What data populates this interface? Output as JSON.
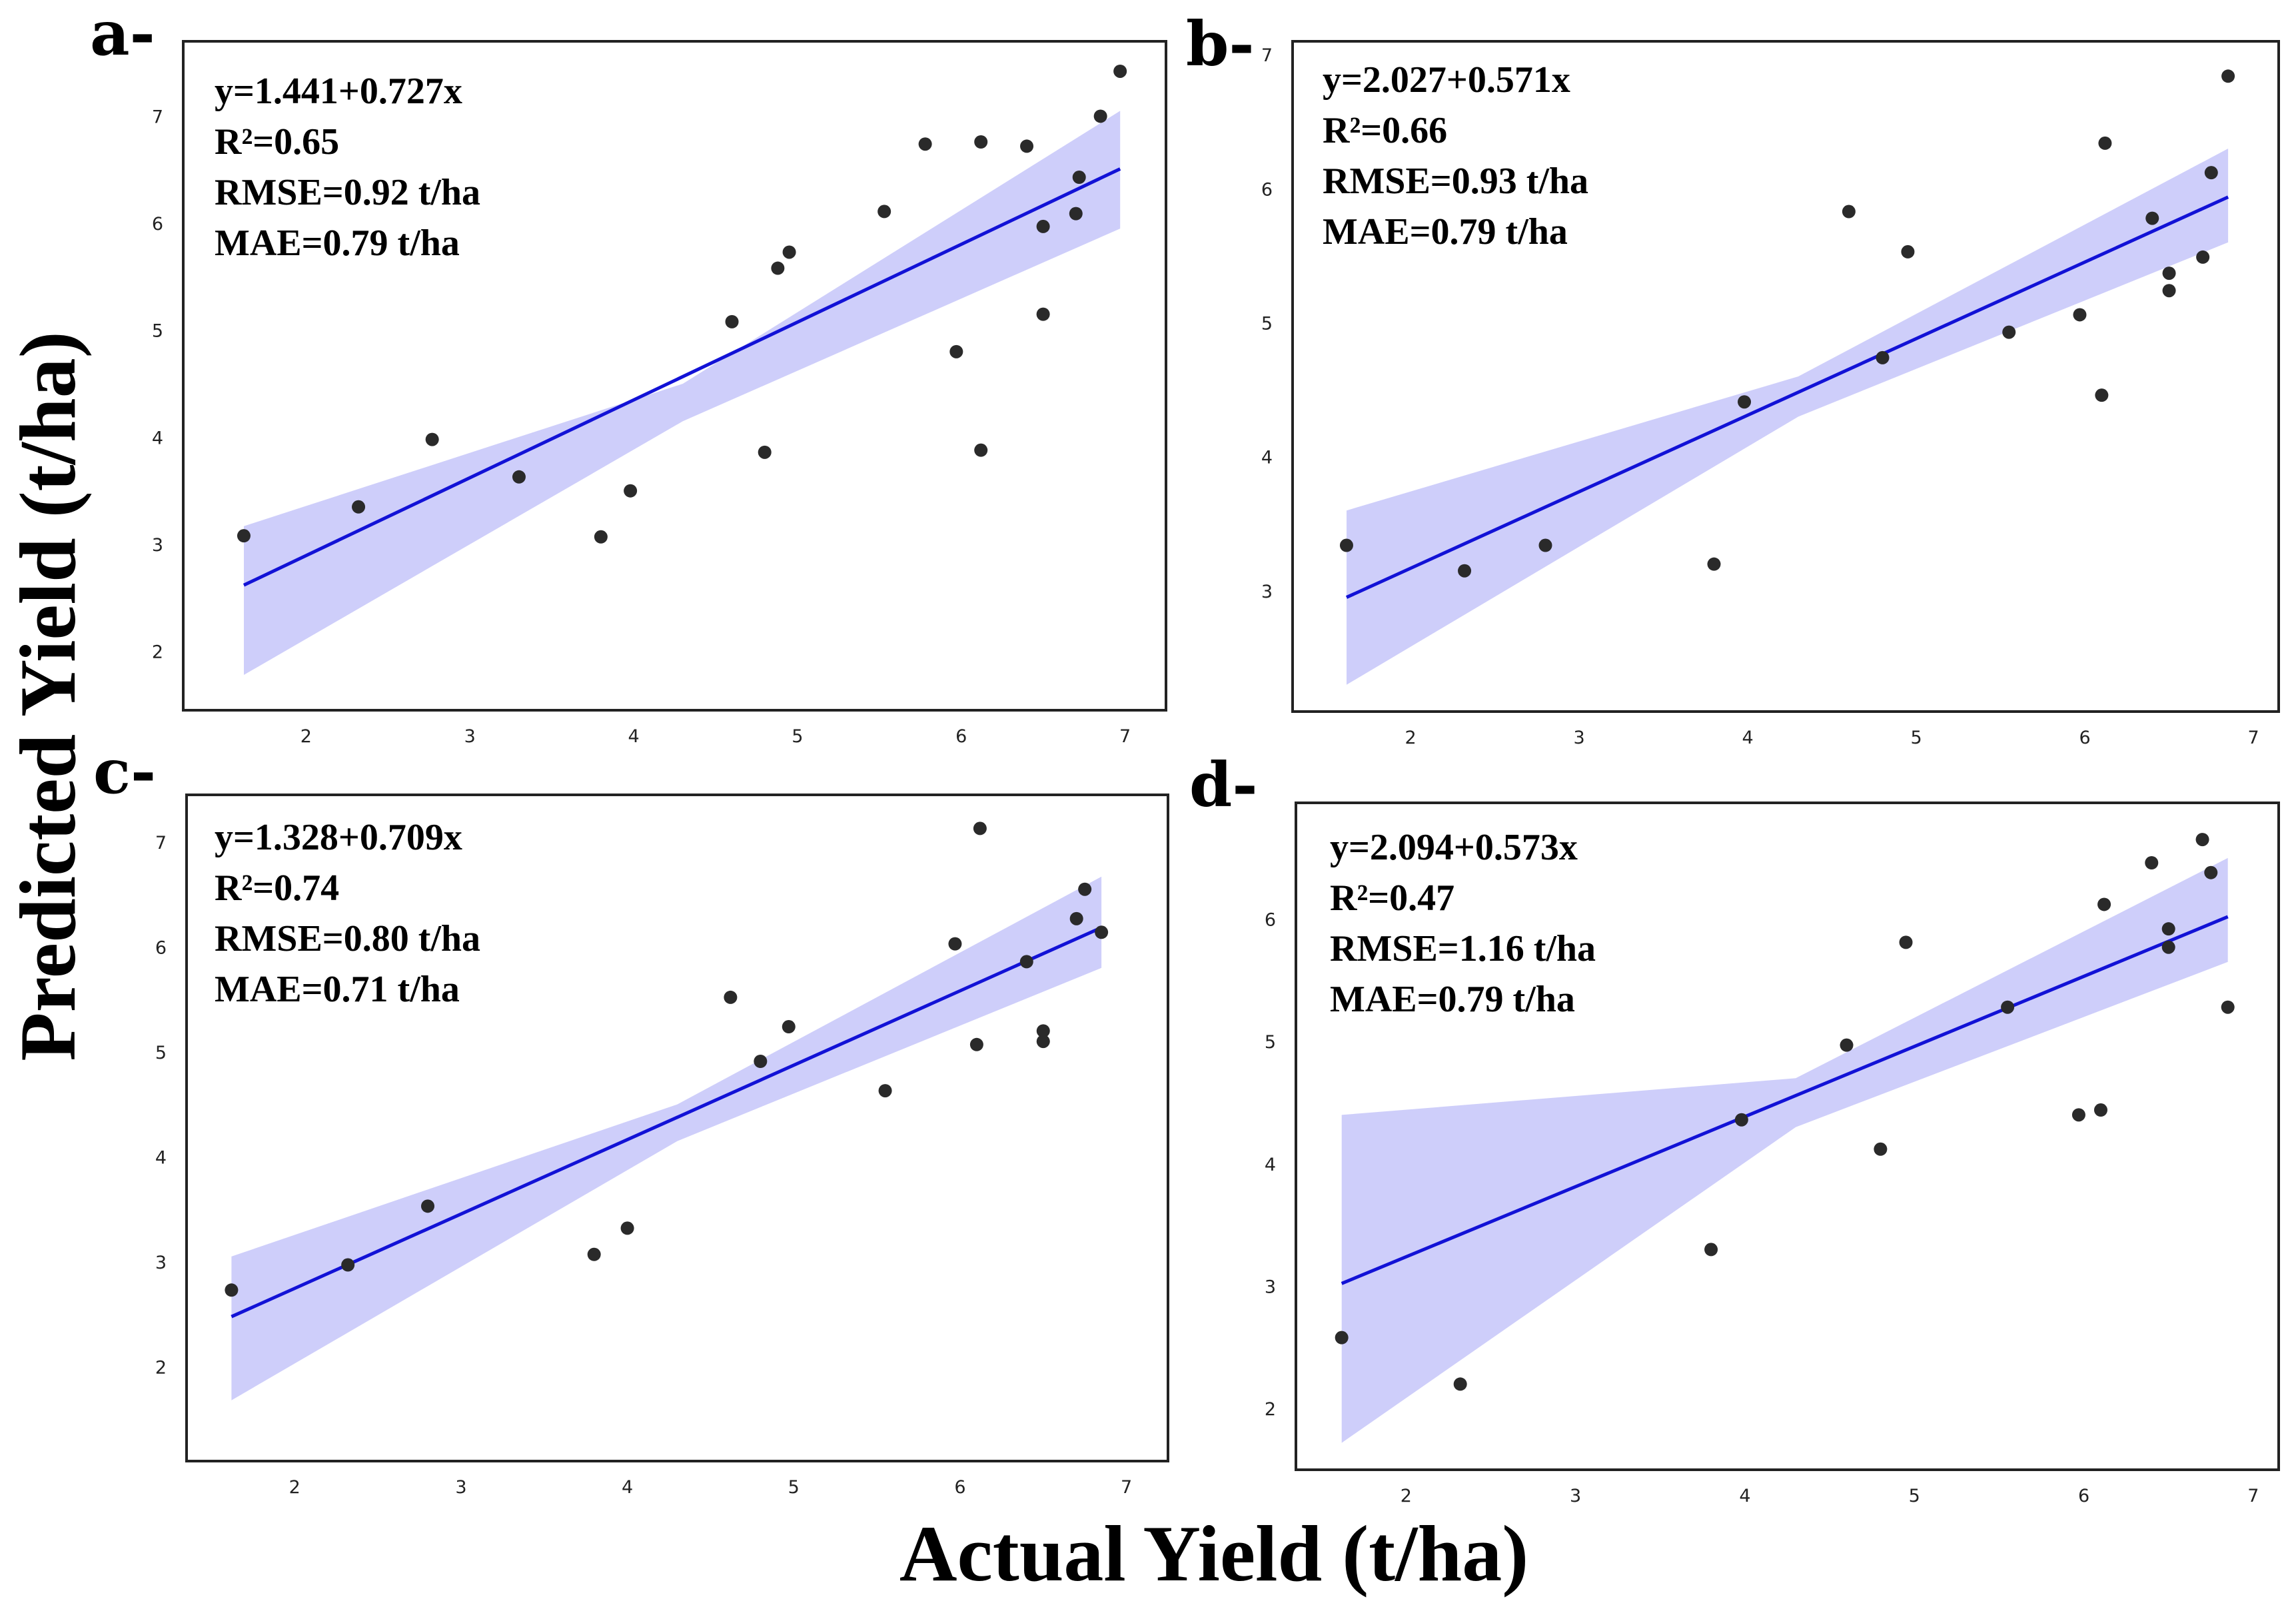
{
  "figure": {
    "x_title": "Actual Yield (t/ha)",
    "y_title": "Predicted Yield (t/ha)"
  },
  "chart_data": [
    {
      "type": "scatter",
      "label": "a-",
      "xlim": [
        1.25,
        7.25
      ],
      "ylim": [
        1.45,
        7.7
      ],
      "xticks": [
        2,
        3,
        4,
        5,
        6,
        7
      ],
      "yticks": [
        2,
        3,
        4,
        5,
        6,
        7
      ],
      "equation": "y=1.441+0.727x",
      "r2": "R²=0.65",
      "rmse": "RMSE=0.92 t/ha",
      "mae": "MAE=0.79 t/ha",
      "fit": {
        "intercept": 1.441,
        "slope": 0.727,
        "x_range": [
          1.62,
          6.97
        ]
      },
      "ci_band": {
        "x": [
          1.62,
          4.3,
          6.97
        ],
        "lower": [
          1.78,
          4.15,
          5.95
        ],
        "upper": [
          3.17,
          4.5,
          7.05
        ]
      },
      "x": [
        1.62,
        2.32,
        2.77,
        3.3,
        3.8,
        3.98,
        4.6,
        4.8,
        4.88,
        4.95,
        5.53,
        5.78,
        5.97,
        6.12,
        6.12,
        6.4,
        6.5,
        6.5,
        6.7,
        6.72,
        6.85,
        6.97
      ],
      "y": [
        3.08,
        3.35,
        3.98,
        3.63,
        3.07,
        3.5,
        5.08,
        3.86,
        5.58,
        5.73,
        6.11,
        6.74,
        4.8,
        3.88,
        6.76,
        6.72,
        5.97,
        5.15,
        6.09,
        6.43,
        7.0,
        7.42
      ]
    },
    {
      "type": "scatter",
      "label": "b-",
      "xlim": [
        1.3,
        7.15
      ],
      "ylim": [
        2.1,
        7.1
      ],
      "xticks": [
        2,
        3,
        4,
        5,
        6,
        7
      ],
      "yticks": [
        3,
        4,
        5,
        6,
        7
      ],
      "equation": "y=2.027+0.571x",
      "r2": "R²=0.66",
      "rmse": "RMSE=0.93 t/ha",
      "mae": "MAE=0.79 t/ha",
      "fit": {
        "intercept": 2.027,
        "slope": 0.571,
        "x_range": [
          1.62,
          6.85
        ]
      },
      "ci_band": {
        "x": [
          1.62,
          4.3,
          6.85
        ],
        "lower": [
          2.3,
          4.3,
          5.6
        ],
        "upper": [
          3.6,
          4.6,
          6.3
        ]
      },
      "x": [
        1.62,
        2.32,
        2.8,
        3.8,
        3.98,
        4.6,
        4.8,
        4.95,
        5.55,
        5.97,
        6.1,
        6.12,
        6.4,
        6.5,
        6.5,
        6.7,
        6.75,
        6.85
      ],
      "y": [
        3.34,
        3.15,
        3.34,
        3.2,
        4.41,
        5.83,
        4.74,
        5.53,
        4.93,
        5.06,
        4.46,
        6.34,
        5.78,
        5.37,
        5.24,
        5.49,
        6.12,
        6.84
      ]
    },
    {
      "type": "scatter",
      "label": "c-",
      "xlim": [
        1.35,
        7.25
      ],
      "ylim": [
        1.1,
        7.45
      ],
      "xticks": [
        2,
        3,
        4,
        5,
        6,
        7
      ],
      "yticks": [
        2,
        3,
        4,
        5,
        6,
        7
      ],
      "equation": "y=1.328+0.709x",
      "r2": "R²=0.74",
      "rmse": "RMSE=0.80 t/ha",
      "mae": "MAE=0.71 t/ha",
      "fit": {
        "intercept": 1.328,
        "slope": 0.709,
        "x_range": [
          1.62,
          6.85
        ]
      },
      "ci_band": {
        "x": [
          1.62,
          4.3,
          6.85
        ],
        "lower": [
          1.68,
          4.15,
          5.8
        ],
        "upper": [
          3.05,
          4.5,
          6.67
        ]
      },
      "x": [
        1.62,
        2.32,
        2.8,
        3.8,
        4.0,
        4.62,
        4.8,
        4.97,
        5.55,
        5.97,
        6.1,
        6.12,
        6.4,
        6.5,
        6.5,
        6.7,
        6.75,
        6.85
      ],
      "y": [
        2.73,
        2.97,
        3.53,
        3.07,
        3.32,
        5.52,
        4.91,
        5.24,
        4.63,
        6.03,
        5.07,
        7.13,
        5.86,
        5.1,
        5.2,
        6.27,
        6.55,
        6.14
      ]
    },
    {
      "type": "scatter",
      "label": "d-",
      "xlim": [
        1.35,
        7.15
      ],
      "ylim": [
        1.5,
        6.95
      ],
      "xticks": [
        2,
        3,
        4,
        5,
        6,
        7
      ],
      "yticks": [
        2,
        3,
        4,
        5,
        6
      ],
      "equation": "y=2.094+0.573x",
      "r2": "R²=0.47",
      "rmse": "RMSE=1.16 t/ha",
      "mae": "MAE=0.79 t/ha",
      "fit": {
        "intercept": 2.094,
        "slope": 0.573,
        "x_range": [
          1.62,
          6.85
        ]
      },
      "ci_band": {
        "x": [
          1.62,
          4.3,
          6.85
        ],
        "lower": [
          1.72,
          4.3,
          5.65
        ],
        "upper": [
          4.4,
          4.7,
          6.5
        ]
      },
      "x": [
        1.62,
        2.32,
        3.8,
        3.98,
        4.6,
        4.8,
        4.95,
        5.55,
        5.97,
        6.1,
        6.12,
        6.4,
        6.5,
        6.5,
        6.7,
        6.75,
        6.85
      ],
      "y": [
        2.58,
        2.2,
        3.3,
        4.36,
        4.97,
        4.12,
        5.81,
        5.28,
        4.4,
        4.44,
        6.12,
        6.46,
        5.77,
        5.92,
        6.65,
        6.38,
        5.28
      ]
    }
  ]
}
